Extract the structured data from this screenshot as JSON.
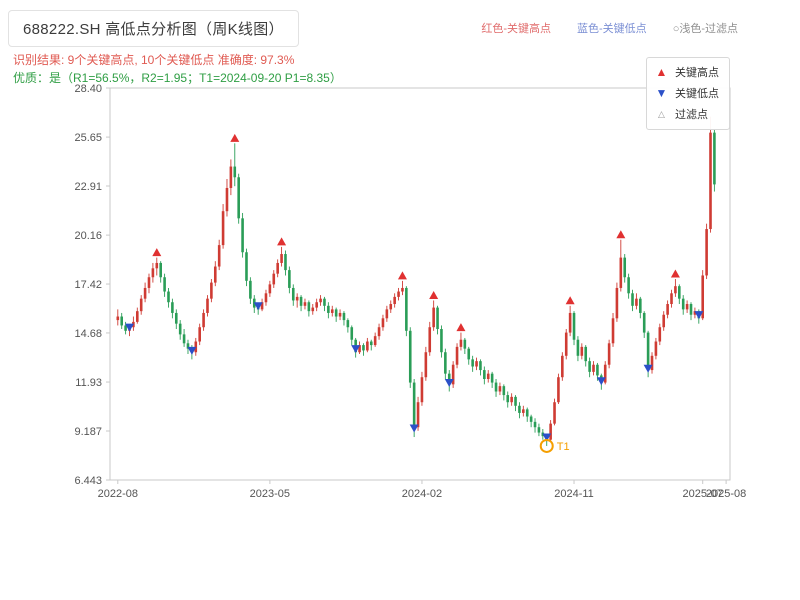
{
  "header": {
    "title": "688222.SH 高低点分析图（周K线图）",
    "legend_high": "红色-关键高点",
    "legend_low": "蓝色-关键低点",
    "legend_filtered": "○浅色-过滤点",
    "result_line": "识别结果: 9个关键高点, 10个关键低点  准确度: 97.3%",
    "quality_line": "优质：是（R1=56.5%，R2=1.95；T1=2024-09-20 P1=8.35）"
  },
  "chart_legend": {
    "high": "关键高点",
    "low": "关键低点",
    "filtered": "过滤点"
  },
  "chart_data": {
    "type": "candlestick",
    "title": "688222.SH 高低点分析图（周K线图）",
    "interval": "weekly",
    "ylim": [
      6.443,
      28.4
    ],
    "xlim": [
      -2,
      157
    ],
    "yticks": [
      {
        "label": "28.40",
        "value": 28.4
      },
      {
        "label": "25.65",
        "value": 25.65
      },
      {
        "label": "22.91",
        "value": 22.91
      },
      {
        "label": "20.16",
        "value": 20.16
      },
      {
        "label": "17.42",
        "value": 17.42
      },
      {
        "label": "14.68",
        "value": 14.68
      },
      {
        "label": "11.93",
        "value": 11.93
      },
      {
        "label": "9.187",
        "value": 9.187
      },
      {
        "label": "6.443",
        "value": 6.443
      }
    ],
    "xticks": [
      {
        "week": 0,
        "label": "2022-08"
      },
      {
        "week": 39,
        "label": "2023-05"
      },
      {
        "week": 78,
        "label": "2024-02"
      },
      {
        "week": 117,
        "label": "2024-11"
      },
      {
        "week": 156,
        "label": "2025-08"
      }
    ],
    "extra_xlabel": {
      "week": 150,
      "label": "2025-07"
    },
    "candles": [
      [
        15.4,
        16,
        15.1,
        15.6
      ],
      [
        15.6,
        15.8,
        14.9,
        15.1
      ],
      [
        15.1,
        15.3,
        14.6,
        14.8
      ],
      [
        14.8,
        15.1,
        14.5,
        15
      ],
      [
        15,
        15.6,
        14.8,
        15.3
      ],
      [
        15.3,
        16.1,
        15.2,
        15.9
      ],
      [
        15.9,
        16.8,
        15.7,
        16.6
      ],
      [
        16.6,
        17.5,
        16.4,
        17.2
      ],
      [
        17.2,
        18,
        16.9,
        17.8
      ],
      [
        17.8,
        18.6,
        17.5,
        18.3
      ],
      [
        18.3,
        18.9,
        17.9,
        18.6
      ],
      [
        18.6,
        18.7,
        17.5,
        17.8
      ],
      [
        17.8,
        18,
        16.7,
        17
      ],
      [
        17,
        17.2,
        16.1,
        16.4
      ],
      [
        16.4,
        16.6,
        15.5,
        15.8
      ],
      [
        15.8,
        16,
        14.9,
        15.2
      ],
      [
        15.2,
        15.4,
        14.3,
        14.6
      ],
      [
        14.6,
        14.9,
        13.9,
        14.1
      ],
      [
        14.1,
        14.3,
        13.5,
        13.8
      ],
      [
        13.8,
        14,
        13.2,
        13.6
      ],
      [
        13.6,
        14.4,
        13.4,
        14.2
      ],
      [
        14.2,
        15.2,
        14,
        15
      ],
      [
        15,
        16,
        14.8,
        15.8
      ],
      [
        15.8,
        16.8,
        15.6,
        16.6
      ],
      [
        16.6,
        17.7,
        16.4,
        17.5
      ],
      [
        17.5,
        18.7,
        17.3,
        18.4
      ],
      [
        18.4,
        19.9,
        18.2,
        19.6
      ],
      [
        19.6,
        21.9,
        19.4,
        21.5
      ],
      [
        21.5,
        23.3,
        21.2,
        22.8
      ],
      [
        22.8,
        24.4,
        22.4,
        24
      ],
      [
        24,
        25.3,
        22.9,
        23.4
      ],
      [
        23.4,
        23.6,
        20.8,
        21.1
      ],
      [
        21.1,
        21.4,
        18.9,
        19.2
      ],
      [
        19.2,
        19.4,
        17.3,
        17.6
      ],
      [
        17.6,
        17.8,
        16.3,
        16.6
      ],
      [
        16.6,
        16.8,
        15.8,
        16.1
      ],
      [
        16.1,
        16.3,
        15.7,
        16
      ],
      [
        16,
        16.6,
        15.9,
        16.4
      ],
      [
        16.4,
        17.1,
        16.2,
        16.9
      ],
      [
        16.9,
        17.6,
        16.7,
        17.4
      ],
      [
        17.4,
        18.2,
        17.2,
        18
      ],
      [
        18,
        18.8,
        17.8,
        18.6
      ],
      [
        18.6,
        19.5,
        18.4,
        19.1
      ],
      [
        19.1,
        19.3,
        17.9,
        18.2
      ],
      [
        18.2,
        18.4,
        16.9,
        17.2
      ],
      [
        17.2,
        17.4,
        16.2,
        16.5
      ],
      [
        16.5,
        16.9,
        16.1,
        16.7
      ],
      [
        16.7,
        16.8,
        15.9,
        16.2
      ],
      [
        16.2,
        16.6,
        16,
        16.4
      ],
      [
        16.4,
        16.5,
        15.6,
        15.9
      ],
      [
        15.9,
        16.3,
        15.7,
        16.1
      ],
      [
        16.1,
        16.6,
        15.9,
        16.4
      ],
      [
        16.4,
        16.8,
        16.2,
        16.6
      ],
      [
        16.6,
        16.7,
        15.9,
        16.2
      ],
      [
        16.2,
        16.4,
        15.5,
        15.8
      ],
      [
        15.8,
        16.2,
        15.6,
        16
      ],
      [
        16,
        16.1,
        15.3,
        15.6
      ],
      [
        15.6,
        16,
        15.4,
        15.8
      ],
      [
        15.8,
        15.9,
        15.1,
        15.4
      ],
      [
        15.4,
        15.5,
        14.7,
        15
      ],
      [
        15,
        15.1,
        14,
        14.3
      ],
      [
        14.3,
        14.4,
        13.3,
        13.6
      ],
      [
        13.6,
        14.2,
        13.5,
        14
      ],
      [
        14,
        14.1,
        13.4,
        13.7
      ],
      [
        13.7,
        14.4,
        13.6,
        14.2
      ],
      [
        14.2,
        14.3,
        13.7,
        14
      ],
      [
        14,
        14.7,
        13.9,
        14.5
      ],
      [
        14.5,
        15.2,
        14.3,
        15
      ],
      [
        15,
        15.7,
        14.8,
        15.5
      ],
      [
        15.5,
        16.2,
        15.3,
        16
      ],
      [
        16,
        16.5,
        15.8,
        16.3
      ],
      [
        16.3,
        16.9,
        16.1,
        16.7
      ],
      [
        16.7,
        17.2,
        16.5,
        17
      ],
      [
        17,
        17.6,
        16.8,
        17.2
      ],
      [
        17.2,
        17.3,
        14.5,
        14.8
      ],
      [
        14.8,
        15,
        11.6,
        11.9
      ],
      [
        11.9,
        12.1,
        8.85,
        9.4
      ],
      [
        9.4,
        11.1,
        9.2,
        10.8
      ],
      [
        10.8,
        12.5,
        10.6,
        12.2
      ],
      [
        12.2,
        13.9,
        12,
        13.6
      ],
      [
        13.6,
        15.3,
        13.4,
        15
      ],
      [
        15,
        16.5,
        14.8,
        16.1
      ],
      [
        16.1,
        16.2,
        14.6,
        14.9
      ],
      [
        14.9,
        15.1,
        13.3,
        13.6
      ],
      [
        13.6,
        13.8,
        12.1,
        12.4
      ],
      [
        12.4,
        12.6,
        11.4,
        11.8
      ],
      [
        11.8,
        13.1,
        11.6,
        12.9
      ],
      [
        12.9,
        14.1,
        12.7,
        13.9
      ],
      [
        13.9,
        14.7,
        13.7,
        14.3
      ],
      [
        14.3,
        14.4,
        13.5,
        13.8
      ],
      [
        13.8,
        13.9,
        12.9,
        13.2
      ],
      [
        13.2,
        13.4,
        12.5,
        12.8
      ],
      [
        12.8,
        13.3,
        12.6,
        13.1
      ],
      [
        13.1,
        13.2,
        12.3,
        12.6
      ],
      [
        12.6,
        12.8,
        11.8,
        12.1
      ],
      [
        12.1,
        12.6,
        11.9,
        12.4
      ],
      [
        12.4,
        12.5,
        11.6,
        11.9
      ],
      [
        11.9,
        12.1,
        11.1,
        11.4
      ],
      [
        11.4,
        11.9,
        11.2,
        11.7
      ],
      [
        11.7,
        11.8,
        10.9,
        11.2
      ],
      [
        11.2,
        11.4,
        10.5,
        10.8
      ],
      [
        10.8,
        11.3,
        10.6,
        11.1
      ],
      [
        11.1,
        11.2,
        10.3,
        10.6
      ],
      [
        10.6,
        10.8,
        9.9,
        10.2
      ],
      [
        10.2,
        10.6,
        10,
        10.4
      ],
      [
        10.4,
        10.5,
        9.7,
        10
      ],
      [
        10,
        10.1,
        9.4,
        9.7
      ],
      [
        9.7,
        9.9,
        9.1,
        9.4
      ],
      [
        9.4,
        9.6,
        8.9,
        9.1
      ],
      [
        9.1,
        9.3,
        8.7,
        8.9
      ],
      [
        8.9,
        9,
        8.35,
        8.7
      ],
      [
        8.7,
        9.8,
        8.6,
        9.6
      ],
      [
        9.6,
        11,
        9.5,
        10.8
      ],
      [
        10.8,
        12.4,
        10.7,
        12.2
      ],
      [
        12.2,
        13.6,
        12,
        13.4
      ],
      [
        13.4,
        14.9,
        13.2,
        14.7
      ],
      [
        14.7,
        16.2,
        14.5,
        15.8
      ],
      [
        15.8,
        15.9,
        14,
        14.3
      ],
      [
        14.3,
        14.5,
        13.1,
        13.4
      ],
      [
        13.4,
        14.1,
        13.2,
        13.9
      ],
      [
        13.9,
        14,
        12.8,
        13.1
      ],
      [
        13.1,
        13.3,
        12.2,
        12.5
      ],
      [
        12.5,
        13.1,
        12.3,
        12.9
      ],
      [
        12.9,
        13,
        12,
        12.3
      ],
      [
        12.3,
        12.4,
        11.5,
        11.9
      ],
      [
        11.9,
        13.1,
        11.8,
        12.9
      ],
      [
        12.9,
        14.3,
        12.7,
        14.1
      ],
      [
        14.1,
        15.8,
        13.9,
        15.5
      ],
      [
        15.5,
        17.5,
        15.3,
        17.2
      ],
      [
        17.2,
        19.9,
        17,
        18.9
      ],
      [
        18.9,
        19.1,
        17.5,
        17.8
      ],
      [
        17.8,
        18,
        16.6,
        16.9
      ],
      [
        16.9,
        17.1,
        15.9,
        16.2
      ],
      [
        16.2,
        16.9,
        16,
        16.6
      ],
      [
        16.6,
        16.7,
        15.5,
        15.8
      ],
      [
        15.8,
        15.9,
        14.4,
        14.7
      ],
      [
        14.7,
        14.8,
        12.2,
        12.6
      ],
      [
        12.6,
        13.6,
        12.4,
        13.4
      ],
      [
        13.4,
        14.4,
        13.2,
        14.2
      ],
      [
        14.2,
        15.2,
        14,
        15
      ],
      [
        15,
        15.9,
        14.8,
        15.7
      ],
      [
        15.7,
        16.5,
        15.5,
        16.3
      ],
      [
        16.3,
        17.1,
        16.1,
        16.9
      ],
      [
        16.9,
        17.7,
        16.7,
        17.3
      ],
      [
        17.3,
        17.4,
        16.3,
        16.6
      ],
      [
        16.6,
        16.8,
        15.7,
        16
      ],
      [
        16,
        16.5,
        15.8,
        16.3
      ],
      [
        16.3,
        16.4,
        15.4,
        15.7
      ],
      [
        15.7,
        16.1,
        15.5,
        15.9
      ],
      [
        15.9,
        16,
        15.2,
        15.5
      ],
      [
        15.5,
        18.2,
        15.4,
        17.9
      ],
      [
        17.9,
        20.8,
        17.7,
        20.5
      ],
      [
        20.5,
        26.8,
        20.3,
        25.9
      ],
      [
        25.9,
        26.1,
        22.6,
        23
      ]
    ],
    "key_highs": [
      {
        "week": 10,
        "price": 18.9
      },
      {
        "week": 30,
        "price": 25.3
      },
      {
        "week": 42,
        "price": 19.5
      },
      {
        "week": 73,
        "price": 17.6
      },
      {
        "week": 81,
        "price": 16.5
      },
      {
        "week": 88,
        "price": 14.7
      },
      {
        "week": 116,
        "price": 16.2
      },
      {
        "week": 129,
        "price": 19.9
      },
      {
        "week": 143,
        "price": 17.7
      }
    ],
    "key_lows": [
      {
        "week": 3,
        "price": 14.5
      },
      {
        "week": 19,
        "price": 13.2
      },
      {
        "week": 36,
        "price": 15.7
      },
      {
        "week": 61,
        "price": 13.3
      },
      {
        "week": 76,
        "price": 8.85
      },
      {
        "week": 85,
        "price": 11.4
      },
      {
        "week": 110,
        "price": 8.35
      },
      {
        "week": 124,
        "price": 11.5
      },
      {
        "week": 136,
        "price": 12.2
      },
      {
        "week": 149,
        "price": 15.2
      }
    ],
    "t1_marker": {
      "week": 110,
      "price": 8.35,
      "label": "T1"
    },
    "colors": {
      "up": "#cf3b33",
      "down": "#2a9d57",
      "key_high": "#e03131",
      "key_low": "#2b50c8",
      "t1": "#f59f00",
      "axis_text": "#555555",
      "spine": "#c9c9c9",
      "plot_bg": "#ffffff"
    }
  }
}
